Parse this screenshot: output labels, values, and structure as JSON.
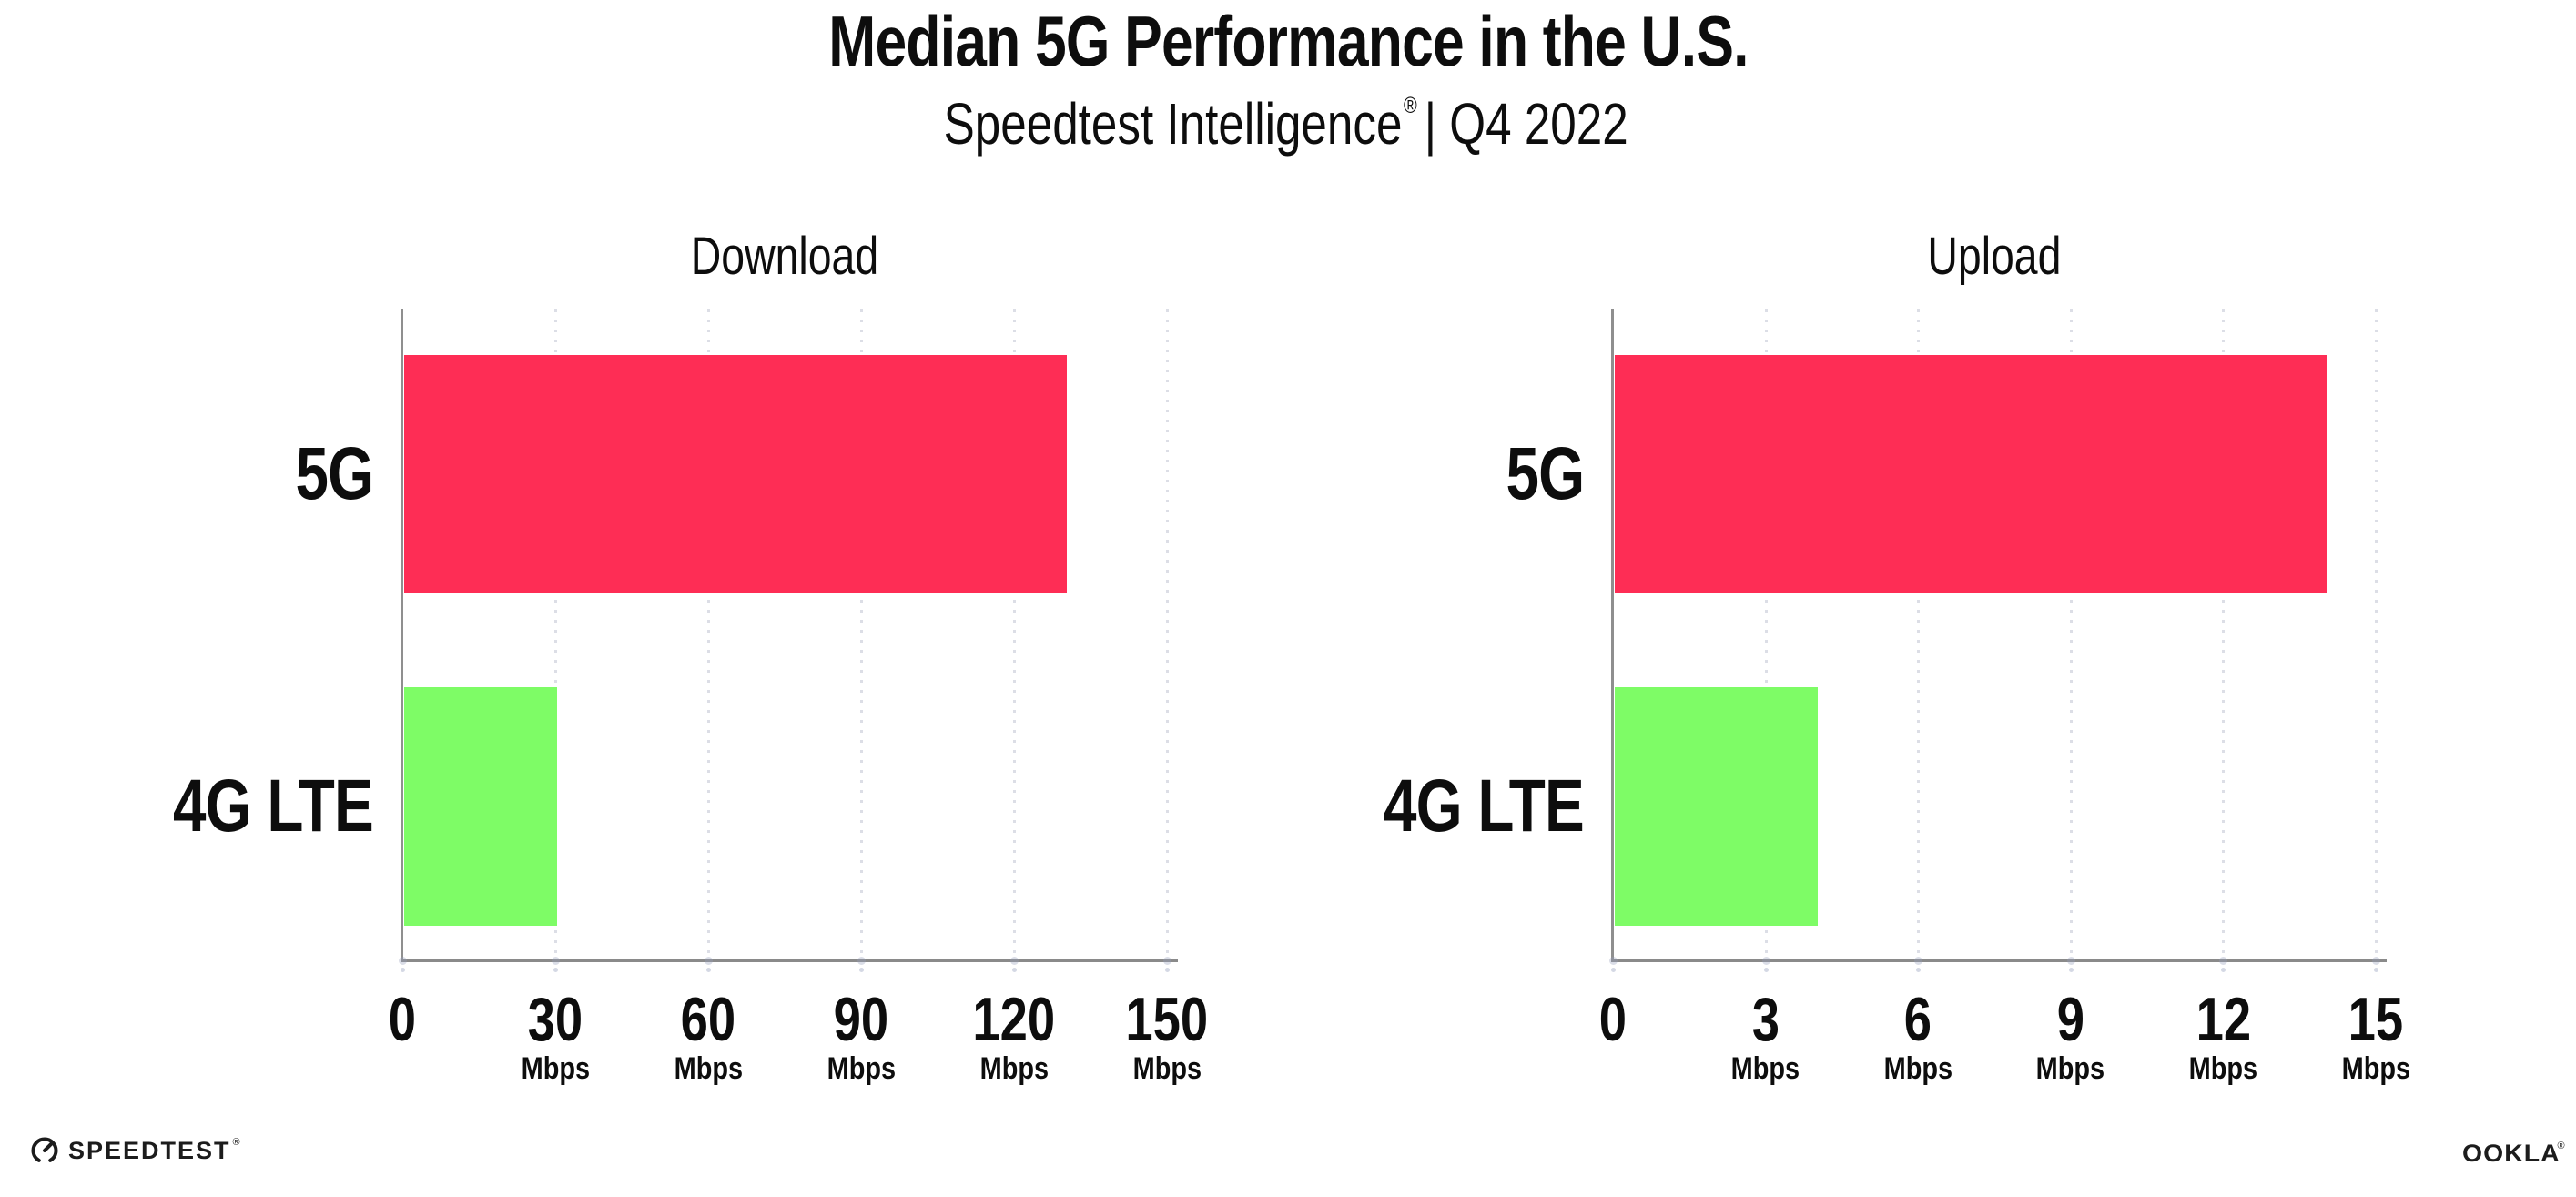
{
  "header": {
    "title": "Median 5G Performance in the U.S.",
    "subtitle_brand": "Speedtest Intelligence",
    "subtitle_reg": "®",
    "subtitle_rest": "| Q4 2022"
  },
  "footer": {
    "speedtest_label": "SPEEDTEST",
    "speedtest_tm": "®",
    "ookla_label": "OOKLA",
    "ookla_tm": "®"
  },
  "colors": {
    "bar_5g": "#FE2D55",
    "bar_4g_lte": "#7EFC66",
    "axis": "#8a8a8a",
    "grid_dot": "#dcdee6",
    "text": "#0d0d0d"
  },
  "chart_data": [
    {
      "type": "bar",
      "orientation": "horizontal",
      "title": "Download",
      "categories": [
        "5G",
        "4G LTE"
      ],
      "values": [
        130,
        30
      ],
      "unit": "Mbps",
      "xlim": [
        0,
        150
      ],
      "xticks": [
        0,
        30,
        60,
        90,
        120,
        150
      ],
      "tick_unit_label": "Mbps",
      "grid": "vertical-dotted",
      "legend": "none",
      "bar_colors": [
        "#FE2D55",
        "#7EFC66"
      ]
    },
    {
      "type": "bar",
      "orientation": "horizontal",
      "title": "Upload",
      "categories": [
        "5G",
        "4G LTE"
      ],
      "values": [
        14,
        4
      ],
      "unit": "Mbps",
      "xlim": [
        0,
        15
      ],
      "xticks": [
        0,
        3,
        6,
        9,
        12,
        15
      ],
      "tick_unit_label": "Mbps",
      "grid": "vertical-dotted",
      "legend": "none",
      "bar_colors": [
        "#FE2D55",
        "#7EFC66"
      ]
    }
  ]
}
